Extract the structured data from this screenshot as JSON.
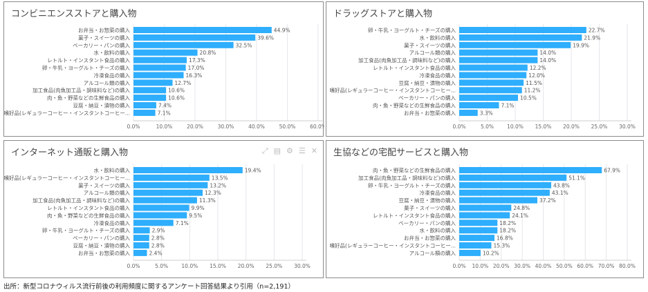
{
  "chart_data": [
    {
      "type": "bar",
      "orientation": "horizontal",
      "title": "コンビニエンスストアと購入物",
      "xlim": [
        0,
        60
      ],
      "xticks": [
        "0.0%",
        "10.0%",
        "20.0%",
        "30.0%",
        "40.0%",
        "50.0%",
        "60.0%"
      ],
      "categories": [
        "お弁当・お惣菜の購入",
        "菓子・スイーツの購入",
        "ベーカリー・パンの購入",
        "水・飲料の購入",
        "レトルト・インスタント食品の購入",
        "卵・牛乳・ヨーグルト・チーズの購入",
        "冷凍食品の購入",
        "アルコール類の購入",
        "加工食品(肉魚加工品・調味料など)の購入",
        "肉・魚・野菜などの生鮮食品の購入",
        "豆腐・納豆・漬物の購入",
        "嗜好品(レギュラーコーヒー・インスタントコーヒー..."
      ],
      "values": [
        44.9,
        39.6,
        32.5,
        20.8,
        17.3,
        17.0,
        16.3,
        12.7,
        10.6,
        10.6,
        7.4,
        7.1
      ],
      "labels": [
        "44.9%",
        "39.6%",
        "32.5%",
        "20.8%",
        "17.3%",
        "17.0%",
        "16.3%",
        "12.7%",
        "10.6%",
        "10.6%",
        "7.4%",
        "7.1%"
      ]
    },
    {
      "type": "bar",
      "orientation": "horizontal",
      "title": "ドラッグストアと購入物",
      "xlim": [
        0,
        30
      ],
      "xticks": [
        "0.0%",
        "5.0%",
        "10.0%",
        "15.0%",
        "20.0%",
        "25.0%",
        "30.0%"
      ],
      "categories": [
        "卵・牛乳・ヨーグルト・チーズの購入",
        "水・飲料の購入",
        "菓子・スイーツの購入",
        "アルコール類の購入",
        "加工食品(肉魚加工品・調味料など)の購入",
        "レトルト・インスタント食品の購入",
        "冷凍食品の購入",
        "豆腐・納豆・漬物の購入",
        "嗜好品(レギュラーコーヒー・インスタントコーヒー...",
        "ベーカリー・パンの購入",
        "肉・魚・野菜などの生鮮食品の購入",
        "お弁当・お惣菜の購入"
      ],
      "values": [
        22.7,
        21.9,
        19.9,
        14.0,
        14.0,
        12.2,
        12.0,
        11.5,
        11.2,
        10.5,
        7.1,
        3.3
      ],
      "labels": [
        "22.7%",
        "21.9%",
        "19.9%",
        "14.0%",
        "14.0%",
        "12.2%",
        "12.0%",
        "11.5%",
        "11.2%",
        "10.5%",
        "7.1%",
        "3.3%"
      ]
    },
    {
      "type": "bar",
      "orientation": "horizontal",
      "title": "インターネット通販と購入物",
      "xlim": [
        0,
        30
      ],
      "xticks": [
        "0.0%",
        "5.0%",
        "10.0%",
        "15.0%",
        "20.0%",
        "25.0%",
        "30.0%"
      ],
      "categories": [
        "水・飲料の購入",
        "嗜好品(レギュラーコーヒー・インスタントコーヒー...",
        "菓子・スイーツの購入",
        "アルコール類の購入",
        "加工食品(肉魚加工品・調味料など)の購入",
        "レトルト・インスタント食品の購入",
        "肉・魚・野菜などの生鮮食品の購入",
        "冷凍食品の購入",
        "卵・牛乳・ヨーグルト・チーズの購入",
        "ベーカリー・パンの購入",
        "豆腐・納豆・漬物の購入",
        "お弁当・お惣菜の購入"
      ],
      "values": [
        19.4,
        13.5,
        13.2,
        12.3,
        11.3,
        9.9,
        9.5,
        7.1,
        2.9,
        2.8,
        2.8,
        2.4
      ],
      "labels": [
        "19.4%",
        "13.5%",
        "13.2%",
        "12.3%",
        "11.3%",
        "9.9%",
        "9.5%",
        "7.1%",
        "2.9%",
        "2.8%",
        "2.8%",
        "2.4%"
      ]
    },
    {
      "type": "bar",
      "orientation": "horizontal",
      "title": "生協などの宅配サービスと購入物",
      "xlim": [
        0,
        80
      ],
      "xticks": [
        "0.0%",
        "10.0%",
        "20.0%",
        "30.0%",
        "40.0%",
        "50.0%",
        "60.0%",
        "70.0%",
        "80.0%"
      ],
      "categories": [
        "肉・魚・野菜などの生鮮食品の購入",
        "加工食品(肉魚加工品・調味料など)の購入",
        "卵・牛乳・ヨーグルト・チーズの購入",
        "冷凍食品の購入",
        "豆腐・納豆・漬物の購入",
        "菓子・スイーツの購入",
        "レトルト・インスタント食品の購入",
        "ベーカリー・パンの購入",
        "水・飲料の購入",
        "お弁当・お惣菜の購入",
        "嗜好品(レギュラーコーヒー・インスタントコーヒー...",
        "アルコール類の購入"
      ],
      "values": [
        67.9,
        51.1,
        43.8,
        43.1,
        37.2,
        24.8,
        24.1,
        18.2,
        18.2,
        16.8,
        15.3,
        10.2
      ],
      "labels": [
        "67.9%",
        "51.1%",
        "43.8%",
        "43.1%",
        "37.2%",
        "24.8%",
        "24.1%",
        "18.2%",
        "18.2%",
        "16.8%",
        "15.3%",
        "10.2%"
      ]
    }
  ],
  "colors": {
    "bar": "#2eaefc",
    "grid": "#e6e6ec",
    "text": "#555555"
  },
  "toolbar_icons": [
    "expand-icon",
    "document-icon",
    "gear-icon",
    "list-icon",
    "close-icon"
  ],
  "footer": "出所：新型コロナウィルス流行前後の利用頻度に関するアンケート回答結果より引用（n=2,191）"
}
